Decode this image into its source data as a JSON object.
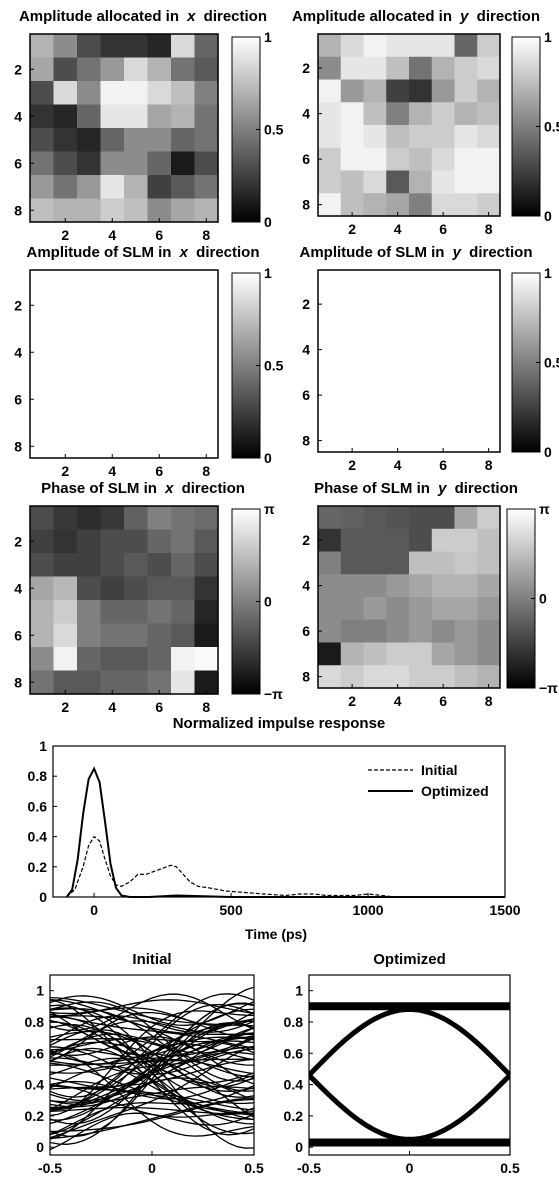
{
  "chart_data": [
    {
      "type": "heatmap",
      "title": "Amplitude allocated in x direction",
      "title_parts": [
        "Amplitude allocated in ",
        "x",
        " direction"
      ],
      "xticks": [
        "2",
        "4",
        "6",
        "8"
      ],
      "yticks": [
        "2",
        "4",
        "6",
        "8"
      ],
      "colorbar": {
        "ticks": [
          "0",
          "0.5",
          "1"
        ],
        "range": [
          0,
          1
        ]
      },
      "values": [
        [
          0.7,
          0.55,
          0.3,
          0.2,
          0.2,
          0.15,
          0.85,
          0.4
        ],
        [
          0.65,
          0.3,
          0.45,
          0.6,
          0.85,
          0.7,
          0.45,
          0.35
        ],
        [
          0.3,
          0.85,
          0.55,
          0.95,
          0.95,
          0.85,
          0.75,
          0.5
        ],
        [
          0.2,
          0.15,
          0.4,
          0.9,
          0.9,
          0.65,
          0.7,
          0.45
        ],
        [
          0.3,
          0.2,
          0.15,
          0.4,
          0.55,
          0.55,
          0.4,
          0.45
        ],
        [
          0.45,
          0.3,
          0.2,
          0.55,
          0.55,
          0.4,
          0.1,
          0.3
        ],
        [
          0.6,
          0.45,
          0.6,
          0.9,
          0.7,
          0.25,
          0.35,
          0.45
        ],
        [
          0.75,
          0.7,
          0.7,
          0.8,
          0.75,
          0.55,
          0.65,
          0.7
        ]
      ]
    },
    {
      "type": "heatmap",
      "title": "Amplitude allocated in y direction",
      "title_parts": [
        "Amplitude allocated in ",
        "y",
        " direction"
      ],
      "xticks": [
        "2",
        "4",
        "6",
        "8"
      ],
      "yticks": [
        "2",
        "4",
        "6",
        "8"
      ],
      "colorbar": {
        "ticks": [
          "0",
          "0.5",
          "1"
        ],
        "range": [
          0,
          1
        ]
      },
      "values": [
        [
          0.7,
          0.85,
          0.95,
          0.9,
          0.9,
          0.9,
          0.4,
          0.8
        ],
        [
          0.55,
          0.9,
          0.9,
          0.75,
          0.45,
          0.7,
          0.8,
          0.85
        ],
        [
          0.95,
          0.6,
          0.7,
          0.25,
          0.2,
          0.6,
          0.8,
          0.7
        ],
        [
          0.9,
          0.95,
          0.75,
          0.5,
          0.7,
          0.8,
          0.7,
          0.75
        ],
        [
          0.9,
          0.95,
          0.9,
          0.75,
          0.8,
          0.8,
          0.9,
          0.85
        ],
        [
          0.8,
          0.95,
          0.95,
          0.8,
          0.75,
          0.85,
          0.95,
          0.95
        ],
        [
          0.8,
          0.75,
          0.85,
          0.35,
          0.7,
          0.9,
          0.95,
          0.95
        ],
        [
          0.95,
          0.75,
          0.7,
          0.65,
          0.5,
          0.85,
          0.85,
          0.8
        ]
      ]
    },
    {
      "type": "heatmap",
      "title": "Amplitude of SLM in x direction",
      "title_parts": [
        "Amplitude of SLM in ",
        "x",
        " direction"
      ],
      "xticks": [
        "2",
        "4",
        "6",
        "8"
      ],
      "yticks": [
        "2",
        "4",
        "6",
        "8"
      ],
      "colorbar": {
        "ticks": [
          "0",
          "0.5",
          "1"
        ],
        "range": [
          0,
          1
        ]
      },
      "uniform_value": 1
    },
    {
      "type": "heatmap",
      "title": "Amplitude of SLM in y direction",
      "title_parts": [
        "Amplitude of SLM in ",
        "y",
        " direction"
      ],
      "xticks": [
        "2",
        "4",
        "6",
        "8"
      ],
      "yticks": [
        "2",
        "4",
        "6",
        "8"
      ],
      "colorbar": {
        "ticks": [
          "0",
          "0.5",
          "1"
        ],
        "range": [
          0,
          1
        ]
      },
      "uniform_value": 1
    },
    {
      "type": "heatmap",
      "title": "Phase of SLM in x direction",
      "title_parts": [
        "Phase of SLM in ",
        "x",
        " direction"
      ],
      "xticks": [
        "2",
        "4",
        "6",
        "8"
      ],
      "yticks": [
        "2",
        "4",
        "6",
        "8"
      ],
      "colorbar": {
        "ticks": [
          "−π",
          "0",
          "π"
        ],
        "range": [
          -3.1416,
          3.1416
        ]
      },
      "values": [
        [
          0.3,
          0.22,
          0.18,
          0.22,
          0.38,
          0.5,
          0.45,
          0.42
        ],
        [
          0.25,
          0.2,
          0.25,
          0.3,
          0.3,
          0.4,
          0.45,
          0.35
        ],
        [
          0.3,
          0.25,
          0.25,
          0.3,
          0.35,
          0.3,
          0.4,
          0.3
        ],
        [
          0.65,
          0.72,
          0.3,
          0.25,
          0.3,
          0.35,
          0.35,
          0.2
        ],
        [
          0.7,
          0.8,
          0.5,
          0.4,
          0.4,
          0.45,
          0.4,
          0.15
        ],
        [
          0.7,
          0.85,
          0.5,
          0.45,
          0.45,
          0.4,
          0.35,
          0.1
        ],
        [
          0.55,
          0.95,
          0.4,
          0.35,
          0.35,
          0.4,
          0.95,
          0.98
        ],
        [
          0.45,
          0.35,
          0.35,
          0.4,
          0.4,
          0.45,
          0.9,
          0.1
        ]
      ]
    },
    {
      "type": "heatmap",
      "title": "Phase of SLM in y direction",
      "title_parts": [
        "Phase of SLM in ",
        "y",
        " direction"
      ],
      "xticks": [
        "2",
        "4",
        "6",
        "8"
      ],
      "yticks": [
        "2",
        "4",
        "6",
        "8"
      ],
      "colorbar": {
        "ticks": [
          "−π",
          "0",
          "π"
        ],
        "range": [
          -3.1416,
          3.1416
        ]
      },
      "values": [
        [
          0.4,
          0.38,
          0.35,
          0.33,
          0.3,
          0.3,
          0.65,
          0.8
        ],
        [
          0.2,
          0.35,
          0.35,
          0.35,
          0.3,
          0.8,
          0.8,
          0.75
        ],
        [
          0.5,
          0.35,
          0.35,
          0.35,
          0.75,
          0.75,
          0.78,
          0.75
        ],
        [
          0.55,
          0.55,
          0.55,
          0.6,
          0.65,
          0.7,
          0.7,
          0.65
        ],
        [
          0.55,
          0.55,
          0.6,
          0.55,
          0.6,
          0.65,
          0.65,
          0.6
        ],
        [
          0.55,
          0.5,
          0.5,
          0.55,
          0.6,
          0.55,
          0.6,
          0.55
        ],
        [
          0.1,
          0.7,
          0.75,
          0.8,
          0.8,
          0.65,
          0.6,
          0.55
        ],
        [
          0.85,
          0.8,
          0.85,
          0.85,
          0.8,
          0.8,
          0.75,
          0.7
        ]
      ]
    },
    {
      "type": "line",
      "title": "Normalized impulse response",
      "xlabel": "Time (ps)",
      "xlim": [
        -150,
        1500
      ],
      "ylim": [
        0,
        1
      ],
      "xticks": [
        "0",
        "500",
        "1000",
        "1500"
      ],
      "yticks": [
        "0",
        "0.2",
        "0.4",
        "0.6",
        "0.8",
        "1"
      ],
      "legend_position": "top-right",
      "series": [
        {
          "name": "Initial",
          "style": "dashed",
          "x": [
            -100,
            -70,
            -40,
            -20,
            0,
            20,
            40,
            60,
            80,
            100,
            130,
            160,
            190,
            220,
            250,
            280,
            300,
            320,
            350,
            380,
            420,
            480,
            550,
            620,
            700,
            750,
            800,
            850,
            900,
            950,
            1000,
            1050,
            1100
          ],
          "y": [
            0,
            0.05,
            0.2,
            0.34,
            0.4,
            0.37,
            0.25,
            0.14,
            0.08,
            0.07,
            0.1,
            0.15,
            0.15,
            0.17,
            0.19,
            0.21,
            0.2,
            0.16,
            0.1,
            0.07,
            0.06,
            0.04,
            0.03,
            0.02,
            0.01,
            0.02,
            0.02,
            0.01,
            0.01,
            0.01,
            0.02,
            0.01,
            0
          ]
        },
        {
          "name": "Optimized",
          "style": "solid",
          "x": [
            -100,
            -80,
            -60,
            -40,
            -20,
            0,
            20,
            40,
            60,
            80,
            100,
            130,
            160,
            200,
            300,
            500,
            1000,
            1500
          ],
          "y": [
            0,
            0.05,
            0.25,
            0.55,
            0.78,
            0.85,
            0.76,
            0.5,
            0.22,
            0.06,
            0.01,
            0,
            0,
            0,
            0.01,
            0,
            0,
            0
          ]
        }
      ]
    },
    {
      "type": "line",
      "title": "Initial",
      "xlim": [
        -0.5,
        0.5
      ],
      "ylim": [
        -0.05,
        1.1
      ],
      "xticks": [
        "-0.5",
        "0",
        "0.5"
      ],
      "yticks": [
        "0",
        "0.2",
        "0.4",
        "0.6",
        "0.8",
        "1"
      ],
      "description": "eye diagram, closed eye"
    },
    {
      "type": "line",
      "title": "Optimized",
      "xlim": [
        -0.5,
        0.5
      ],
      "ylim": [
        -0.05,
        1.1
      ],
      "xticks": [
        "-0.5",
        "0",
        "0.5"
      ],
      "yticks": [
        "0",
        "0.2",
        "0.4",
        "0.6",
        "0.8",
        "1"
      ],
      "levels": [
        0.03,
        0.9
      ],
      "description": "eye diagram, open eye"
    }
  ]
}
